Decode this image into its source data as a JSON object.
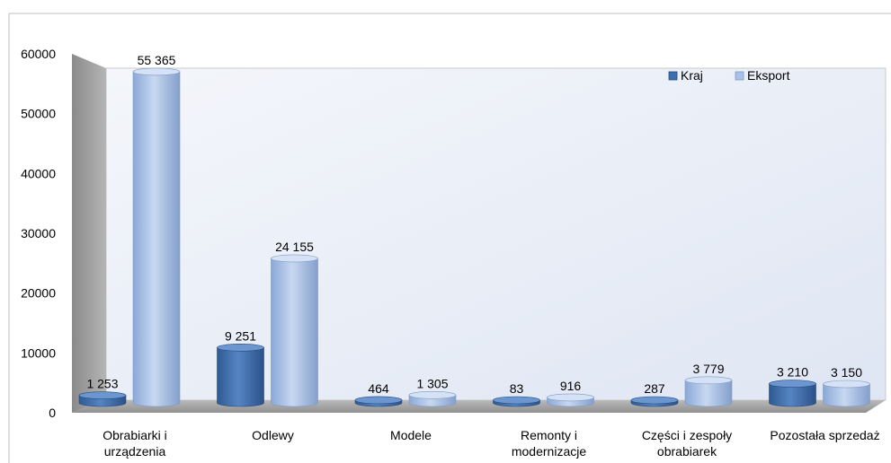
{
  "chart_data": {
    "type": "bar",
    "categories": [
      [
        "Obrabiarki i",
        "urządzenia"
      ],
      [
        "Odlewy"
      ],
      [
        "Modele"
      ],
      [
        "Remonty i",
        "modernizacje"
      ],
      [
        "Części i zespoły",
        "obrabiarek"
      ],
      [
        "Pozostała sprzedaż"
      ]
    ],
    "series": [
      {
        "name": "Kraj",
        "values": [
          1253,
          9251,
          464,
          83,
          287,
          3210
        ],
        "labels": [
          "1 253",
          "9 251",
          "464",
          "83",
          "287",
          "3 210"
        ],
        "color": "#3d6fae"
      },
      {
        "name": "Eksport",
        "values": [
          55365,
          24155,
          1305,
          916,
          3779,
          3150
        ],
        "labels": [
          "55 365",
          "24 155",
          "1 305",
          "916",
          "3 779",
          "3 150"
        ],
        "color": "#a9c1e6"
      }
    ],
    "yticks": [
      "0",
      "10000",
      "20000",
      "30000",
      "40000",
      "50000",
      "60000"
    ],
    "ylim": [
      0,
      60000
    ],
    "legend_position": "top-right",
    "grid": false
  }
}
